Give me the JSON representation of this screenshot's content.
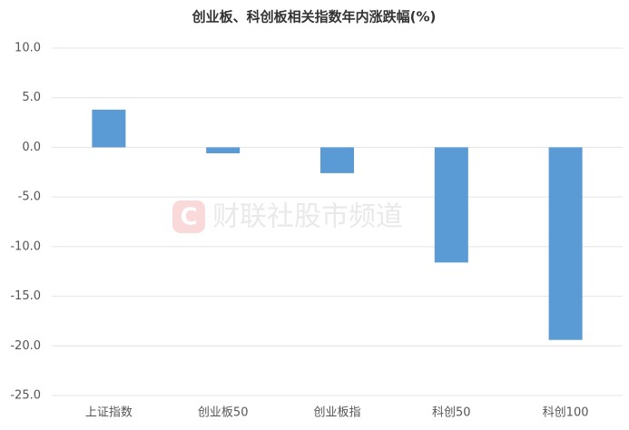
{
  "chart_data": {
    "type": "bar",
    "title": "创业板、科创板相关指数年内涨跌幅(%)",
    "categories": [
      "上证指数",
      "创业板50",
      "创业板指",
      "科创50",
      "科创100"
    ],
    "values": [
      3.8,
      -0.6,
      -2.6,
      -11.6,
      -19.4
    ],
    "color": "#5b9bd5",
    "ylim": [
      -25,
      10
    ],
    "yticks": [
      {
        "value": -25,
        "label": "-25.0"
      },
      {
        "value": -20,
        "label": "-20.0"
      },
      {
        "value": -15,
        "label": "-15.0"
      },
      {
        "value": -10,
        "label": "-10.0"
      },
      {
        "value": -5,
        "label": "-5.0"
      },
      {
        "value": 0,
        "label": "0.0"
      },
      {
        "value": 5,
        "label": "5.0"
      },
      {
        "value": 10,
        "label": "10.0"
      }
    ],
    "grid": true
  },
  "watermark": "财联社股市频道"
}
